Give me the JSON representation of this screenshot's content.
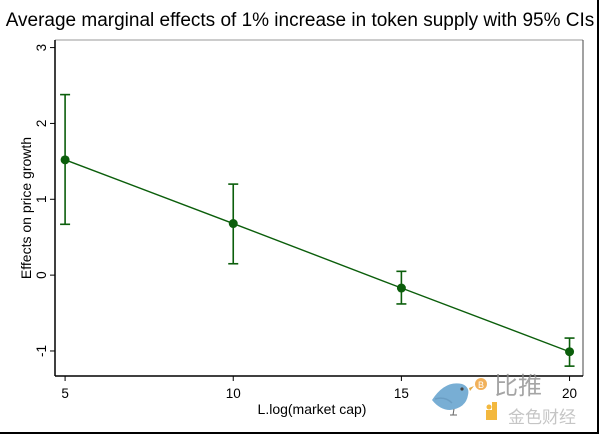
{
  "chart_data": {
    "type": "line",
    "title": "Average marginal effects of 1% increase in token supply with 95% CIs",
    "xlabel": "L.log(market cap)",
    "ylabel": "Effects on price growth",
    "x": [
      5,
      10,
      15,
      20
    ],
    "series": [
      {
        "name": "Average marginal effect",
        "values": [
          1.52,
          0.68,
          -0.17,
          -1.01
        ],
        "ci_lower": [
          0.67,
          0.15,
          -0.38,
          -1.2
        ],
        "ci_upper": [
          2.38,
          1.2,
          0.05,
          -0.83
        ]
      }
    ],
    "xticks": [
      5,
      10,
      15,
      20
    ],
    "xtick_labels": [
      "5",
      "10",
      "15",
      "20"
    ],
    "yticks": [
      -1,
      0,
      1,
      2,
      3
    ],
    "ytick_labels": [
      "-1",
      "0",
      "1",
      "2",
      "3"
    ],
    "xlim": [
      4.7,
      20.4
    ],
    "ylim": [
      -1.33,
      3.1
    ],
    "grid": false,
    "legend": "none",
    "colors": {
      "series": "#0b5e0b",
      "axis": "#000000"
    }
  },
  "watermark": {
    "brand_cn": "比推",
    "brand2_cn": "金色财经",
    "coin_glyph": "B"
  }
}
